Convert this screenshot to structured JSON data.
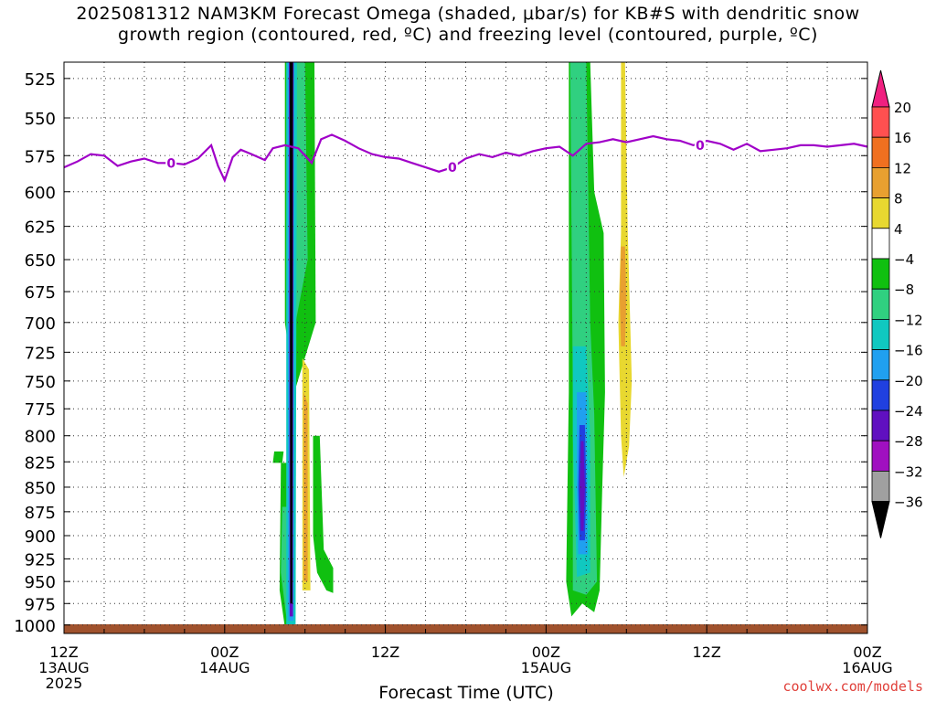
{
  "title": {
    "line1": "2025081312 NAM3KM Forecast Omega (shaded, μbar/s) for KB#S with dendritic snow",
    "line2": "growth region (contoured, red, ºC) and freezing level (contoured, purple, ºC)"
  },
  "credit": "coolwx.com/models",
  "chart_data": {
    "type": "heatmap",
    "xlabel": "Forecast Time (UTC)",
    "ylabel": "",
    "x_range_hours": [
      0,
      60
    ],
    "y_range_hpa": [
      515,
      1010
    ],
    "y_scale": "log-pressure",
    "grid": true,
    "x_ticks": [
      {
        "h": 0,
        "label": "12Z",
        "sub1": "13AUG",
        "sub2": "2025"
      },
      {
        "h": 12,
        "label": "00Z",
        "sub1": "14AUG",
        "sub2": ""
      },
      {
        "h": 24,
        "label": "12Z",
        "sub1": "",
        "sub2": ""
      },
      {
        "h": 36,
        "label": "00Z",
        "sub1": "15AUG",
        "sub2": ""
      },
      {
        "h": 48,
        "label": "12Z",
        "sub1": "",
        "sub2": ""
      },
      {
        "h": 60,
        "label": "00Z",
        "sub1": "16AUG",
        "sub2": ""
      }
    ],
    "y_ticks": [
      525,
      550,
      575,
      600,
      625,
      650,
      675,
      700,
      725,
      750,
      775,
      800,
      825,
      850,
      875,
      900,
      925,
      950,
      975,
      1000
    ],
    "colorbar": {
      "labels": [
        "20",
        "16",
        "12",
        "8",
        "4",
        "−4",
        "−8",
        "−12",
        "−16",
        "−20",
        "−24",
        "−28",
        "−32",
        "−36"
      ],
      "colors_top_to_bottom": [
        "#ff5050",
        "#f07020",
        "#e8a030",
        "#e8d830",
        "#ffffff",
        "#10c010",
        "#30d080",
        "#10c8c0",
        "#20a0f0",
        "#2040e0",
        "#6010c0",
        "#a010c0",
        "#a0a0a0"
      ],
      "top_triangle": "#f02080",
      "bottom_triangle": "#000000"
    },
    "freezing_level": {
      "label": "0",
      "color": "#a000c8",
      "points": [
        [
          0,
          583
        ],
        [
          1,
          579
        ],
        [
          2,
          574
        ],
        [
          3,
          575
        ],
        [
          4,
          582
        ],
        [
          5,
          579
        ],
        [
          6,
          577
        ],
        [
          7,
          580
        ],
        [
          8,
          580
        ],
        [
          9,
          581
        ],
        [
          10,
          577
        ],
        [
          11,
          568
        ],
        [
          11.5,
          582
        ],
        [
          12,
          592
        ],
        [
          12.6,
          576
        ],
        [
          13.2,
          571
        ],
        [
          14,
          574
        ],
        [
          15,
          578
        ],
        [
          15.6,
          570
        ],
        [
          16.5,
          568
        ],
        [
          17.5,
          570
        ],
        [
          18.5,
          580
        ],
        [
          19.2,
          564
        ],
        [
          20,
          561
        ],
        [
          21,
          565
        ],
        [
          22,
          570
        ],
        [
          23,
          574
        ],
        [
          24,
          576
        ],
        [
          25,
          577
        ],
        [
          26,
          580
        ],
        [
          27,
          583
        ],
        [
          28,
          586
        ],
        [
          29,
          583
        ],
        [
          30,
          577
        ],
        [
          31,
          574
        ],
        [
          32,
          576
        ],
        [
          33,
          573
        ],
        [
          34,
          575
        ],
        [
          35,
          572
        ],
        [
          36,
          570
        ],
        [
          37,
          569
        ],
        [
          38,
          575
        ],
        [
          39,
          567
        ],
        [
          40,
          566
        ],
        [
          41,
          564
        ],
        [
          42,
          566
        ],
        [
          43,
          564
        ],
        [
          44,
          562
        ],
        [
          45,
          564
        ],
        [
          46,
          565
        ],
        [
          47,
          568
        ],
        [
          48,
          565
        ],
        [
          49,
          567
        ],
        [
          50,
          571
        ],
        [
          51,
          567
        ],
        [
          52,
          572
        ],
        [
          53,
          571
        ],
        [
          54,
          570
        ],
        [
          55,
          568
        ],
        [
          56,
          568
        ],
        [
          57,
          569
        ],
        [
          58,
          568
        ],
        [
          59,
          567
        ],
        [
          60,
          569
        ]
      ],
      "label_at_hours": [
        8,
        29,
        47.5
      ]
    },
    "omega_features": [
      {
        "color": "#10c010",
        "points": [
          [
            15.7,
            815
          ],
          [
            16.4,
            815
          ],
          [
            16.3,
            826
          ],
          [
            15.6,
            826
          ]
        ]
      },
      {
        "color": "#10c010",
        "points": [
          [
            16.2,
            826
          ],
          [
            17.3,
            826
          ],
          [
            17.1,
            1002
          ],
          [
            16.5,
            1003
          ],
          [
            16.1,
            960
          ]
        ]
      },
      {
        "color": "#30d080",
        "points": [
          [
            16.3,
            870
          ],
          [
            17.2,
            870
          ],
          [
            17.1,
            990
          ],
          [
            16.6,
            990
          ],
          [
            16.2,
            940
          ]
        ]
      },
      {
        "color": "#10c010",
        "points": [
          [
            16.5,
            515
          ],
          [
            18.7,
            515
          ],
          [
            18.8,
            700
          ],
          [
            17.2,
            760
          ],
          [
            16.5,
            700
          ]
        ]
      },
      {
        "color": "#30d080",
        "points": [
          [
            17.2,
            515
          ],
          [
            18.0,
            515
          ],
          [
            18.2,
            650
          ],
          [
            17.3,
            700
          ]
        ]
      },
      {
        "color": "#10c010",
        "points": [
          [
            18.6,
            800
          ],
          [
            19.1,
            800
          ],
          [
            19.4,
            915
          ],
          [
            20.1,
            935
          ],
          [
            20.1,
            963
          ],
          [
            19.6,
            960
          ],
          [
            18.9,
            940
          ],
          [
            18.6,
            900
          ]
        ]
      },
      {
        "color": "#e8d830",
        "points": [
          [
            17.8,
            730
          ],
          [
            18.3,
            740
          ],
          [
            18.4,
            960
          ],
          [
            17.8,
            960
          ]
        ]
      },
      {
        "color": "#e8a030",
        "points": [
          [
            17.9,
            760
          ],
          [
            18.2,
            770
          ],
          [
            18.2,
            950
          ],
          [
            17.9,
            950
          ]
        ]
      },
      {
        "color": "#10c8c0",
        "points": [
          [
            16.6,
            515
          ],
          [
            17.4,
            515
          ],
          [
            17.3,
            1000
          ],
          [
            16.6,
            1000
          ]
        ]
      },
      {
        "color": "#20a0f0",
        "points": [
          [
            16.7,
            515
          ],
          [
            17.2,
            515
          ],
          [
            17.15,
            995
          ],
          [
            16.75,
            995
          ]
        ]
      },
      {
        "color": "#6010c0",
        "points": [
          [
            16.8,
            515
          ],
          [
            17.15,
            515
          ],
          [
            17.1,
            990
          ],
          [
            16.85,
            990
          ]
        ]
      },
      {
        "color": "#000000",
        "points": [
          [
            16.85,
            515
          ],
          [
            17.1,
            515
          ],
          [
            17.05,
            975
          ],
          [
            16.9,
            975
          ]
        ]
      },
      {
        "color": "#10c010",
        "points": [
          [
            37.7,
            515
          ],
          [
            39.3,
            515
          ],
          [
            39.6,
            600
          ],
          [
            40.3,
            630
          ],
          [
            40.4,
            760
          ],
          [
            40.2,
            850
          ],
          [
            40.0,
            960
          ],
          [
            39.6,
            985
          ],
          [
            38.7,
            975
          ],
          [
            37.9,
            990
          ],
          [
            37.5,
            950
          ],
          [
            37.7,
            760
          ]
        ]
      },
      {
        "color": "#30d080",
        "points": [
          [
            37.8,
            515
          ],
          [
            39.0,
            515
          ],
          [
            39.3,
            700
          ],
          [
            39.6,
            780
          ],
          [
            39.8,
            950
          ],
          [
            39.0,
            965
          ],
          [
            38.0,
            960
          ],
          [
            38.0,
            760
          ]
        ]
      },
      {
        "color": "#10c8c0",
        "points": [
          [
            38.0,
            720
          ],
          [
            39.0,
            720
          ],
          [
            39.3,
            800
          ],
          [
            39.3,
            940
          ],
          [
            38.3,
            945
          ],
          [
            38.0,
            800
          ]
        ]
      },
      {
        "color": "#20a0f0",
        "points": [
          [
            38.3,
            760
          ],
          [
            39.0,
            760
          ],
          [
            39.1,
            850
          ],
          [
            39.1,
            920
          ],
          [
            38.4,
            920
          ],
          [
            38.3,
            850
          ]
        ]
      },
      {
        "color": "#2040e0",
        "points": [
          [
            38.5,
            790
          ],
          [
            38.9,
            790
          ],
          [
            39.0,
            850
          ],
          [
            38.9,
            905
          ],
          [
            38.5,
            905
          ],
          [
            38.4,
            850
          ]
        ]
      },
      {
        "color": "#6010c0",
        "points": [
          [
            38.6,
            805
          ],
          [
            38.8,
            805
          ],
          [
            38.9,
            850
          ],
          [
            38.8,
            895
          ],
          [
            38.6,
            895
          ],
          [
            38.5,
            850
          ]
        ]
      },
      {
        "color": "#e8d830",
        "points": [
          [
            41.6,
            515
          ],
          [
            41.9,
            515
          ],
          [
            42.1,
            630
          ],
          [
            42.4,
            750
          ],
          [
            42.2,
            810
          ],
          [
            41.8,
            840
          ],
          [
            41.6,
            800
          ],
          [
            41.4,
            700
          ],
          [
            41.6,
            630
          ]
        ]
      },
      {
        "color": "#e8a030",
        "points": [
          [
            41.6,
            640
          ],
          [
            41.9,
            640
          ],
          [
            42.0,
            680
          ],
          [
            41.9,
            720
          ],
          [
            41.6,
            720
          ],
          [
            41.5,
            680
          ]
        ]
      }
    ]
  }
}
